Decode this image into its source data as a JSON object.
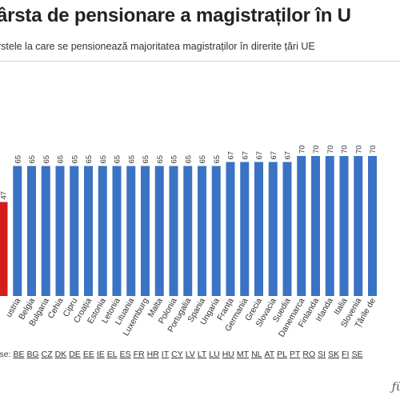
{
  "header": {
    "title": "ârsta de pensionare a magistraților în U",
    "subtitle": "rstele la care se pensionează majoritatea magistraților în direrite țări UE"
  },
  "source": {
    "label": "rse:",
    "codes": [
      "BE",
      "BG",
      "CZ",
      "DK",
      "DE",
      "EE",
      "IE",
      "EL",
      "ES",
      "FR",
      "HR",
      "IT",
      "CY",
      "LV",
      "LT",
      "LU",
      "HU",
      "MT",
      "NL",
      "AT",
      "PL",
      "PT",
      "RO",
      "SI",
      "SK",
      "FI",
      "SE"
    ]
  },
  "logo": {
    "text": "ƒū"
  },
  "colors": {
    "bar": "#3a73c4",
    "highlight": "#d41c1c",
    "label": "#333333"
  },
  "chart_data": {
    "type": "bar",
    "categories": [
      "",
      "ustria",
      "Belgia",
      "Bulgaria",
      "Cehia",
      "Cipru",
      "Croația",
      "Estonia",
      "Letonia",
      "Lituania",
      "Luxemburg",
      "Malta",
      "Polonia",
      "Portugalia",
      "Spania",
      "Ungaria",
      "Franța",
      "Germania",
      "Grecia",
      "Slovacia",
      "Suedia",
      "Danemarca",
      "Finlanda",
      "Irlanda",
      "Italia",
      "Slovenia",
      "Țările de"
    ],
    "values": [
      47,
      65,
      65,
      65,
      65,
      65,
      65,
      65,
      65,
      65,
      65,
      65,
      65,
      65,
      65,
      65,
      67,
      67,
      67,
      67,
      67,
      70,
      70,
      70,
      70,
      70,
      70
    ],
    "value_labels": [
      "47",
      "65",
      "65",
      "65",
      "65",
      "65",
      "65",
      "65",
      "65",
      "65",
      "65",
      "65",
      "65",
      "65",
      "65",
      "65",
      "67",
      "67",
      "67",
      "67",
      "67",
      "70",
      "70",
      "70",
      "70",
      "70",
      "70"
    ],
    "highlight_index": 0,
    "ylim": [
      0,
      70
    ],
    "grid": false,
    "legend": "none"
  }
}
